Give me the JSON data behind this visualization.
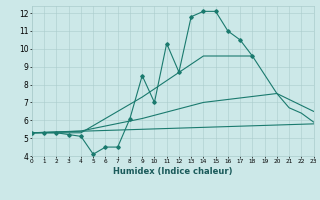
{
  "xlabel": "Humidex (Indice chaleur)",
  "bg_color": "#cce8e8",
  "line_color": "#1a7a6e",
  "grid_color": "#aacccc",
  "xlim": [
    0,
    23
  ],
  "ylim": [
    4,
    12.4
  ],
  "xticks": [
    0,
    1,
    2,
    3,
    4,
    5,
    6,
    7,
    8,
    9,
    10,
    11,
    12,
    13,
    14,
    15,
    16,
    17,
    18,
    19,
    20,
    21,
    22,
    23
  ],
  "yticks": [
    4,
    5,
    6,
    7,
    8,
    9,
    10,
    11,
    12
  ],
  "line1_x": [
    0,
    1,
    2,
    3,
    4,
    5,
    6,
    7,
    8,
    9,
    10,
    11,
    12,
    13,
    14,
    15,
    16,
    17,
    18
  ],
  "line1_y": [
    5.3,
    5.3,
    5.3,
    5.2,
    5.1,
    4.1,
    4.5,
    4.5,
    6.1,
    8.5,
    7.0,
    10.3,
    8.7,
    11.8,
    12.1,
    12.1,
    11.0,
    10.5,
    9.6
  ],
  "line2_x": [
    0,
    4,
    9,
    14,
    18,
    20,
    21,
    22,
    23
  ],
  "line2_y": [
    5.3,
    5.3,
    7.3,
    9.6,
    9.6,
    7.5,
    6.7,
    6.4,
    5.9
  ],
  "line3_x": [
    0,
    4,
    9,
    14,
    20,
    23
  ],
  "line3_y": [
    5.3,
    5.4,
    6.1,
    7.0,
    7.5,
    6.5
  ],
  "line4_x": [
    0,
    23
  ],
  "line4_y": [
    5.3,
    5.8
  ]
}
